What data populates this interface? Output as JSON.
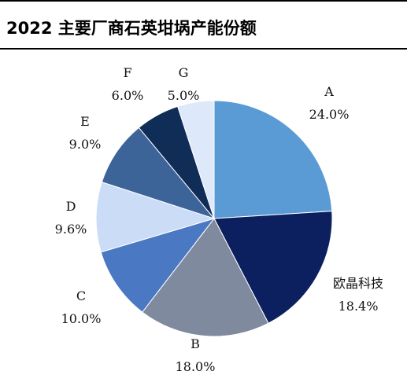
{
  "title": "2022 主要厂商石英坩埚产能份额",
  "chart_data": {
    "type": "pie",
    "title": "2022 主要厂商石英坩埚产能份额",
    "start_angle_deg": 0,
    "direction": "clockwise",
    "slices": [
      {
        "name": "A",
        "value": 24.0,
        "label": "24.0%",
        "color": "#5B9BD5"
      },
      {
        "name": "欧晶科技",
        "value": 18.4,
        "label": "18.4%",
        "color": "#0C2060"
      },
      {
        "name": "B",
        "value": 18.0,
        "label": "18.0%",
        "color": "#7F8A9E"
      },
      {
        "name": "C",
        "value": 10.0,
        "label": "10.0%",
        "color": "#4A78C2"
      },
      {
        "name": "D",
        "value": 9.6,
        "label": "9.6%",
        "color": "#CADCF6"
      },
      {
        "name": "E",
        "value": 9.0,
        "label": "9.0%",
        "color": "#3D6499"
      },
      {
        "name": "F",
        "value": 6.0,
        "label": "6.0%",
        "color": "#0F2D57"
      },
      {
        "name": "G",
        "value": 5.0,
        "label": "5.0%",
        "color": "#DDE9FA"
      }
    ]
  }
}
